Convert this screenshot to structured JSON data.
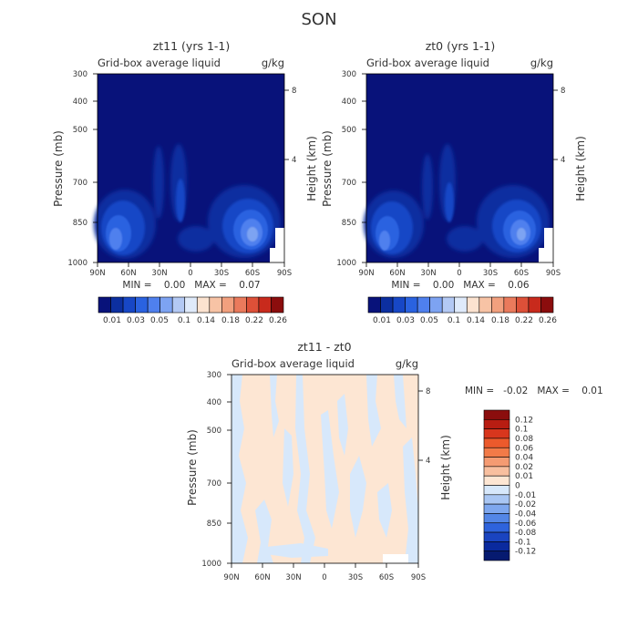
{
  "page": {
    "super_title": "SON"
  },
  "chart_data": [
    {
      "type": "contour",
      "title": "zt11 (yrs 1-1)",
      "subtitle_left": "Grid-box average liquid",
      "subtitle_right": "g/kg",
      "ylabel": "Pressure (mb)",
      "ylabel_right": "Height (km)",
      "x_ticks": [
        "90N",
        "60N",
        "30N",
        "0",
        "30S",
        "60S",
        "90S"
      ],
      "y_ticks": [
        "300",
        "400",
        "500",
        "700",
        "850",
        "1000"
      ],
      "y_ticks_right": [
        "8",
        "4"
      ],
      "stat_text": "MIN =    0.00   MAX =    0.07",
      "stats": {
        "min": 0.0,
        "max": 0.07
      },
      "colorbar": {
        "orientation": "horizontal",
        "labels": [
          "0.01",
          "0.03",
          "0.05",
          "0.1",
          "0.14",
          "0.18",
          "0.22",
          "0.26"
        ],
        "colors": [
          "#08127a",
          "#0c2fa0",
          "#1747c6",
          "#2a62e0",
          "#4f80ee",
          "#7da3f2",
          "#b3c9f4",
          "#dfeafa",
          "#fce3d0",
          "#f7c3a5",
          "#f2a07e",
          "#ea7a5c",
          "#dd5038",
          "#c82a1c",
          "#8b0d0d"
        ]
      }
    },
    {
      "type": "contour",
      "title": "zt0 (yrs 1-1)",
      "subtitle_left": "Grid-box average liquid",
      "subtitle_right": "g/kg",
      "ylabel": "Pressure (mb)",
      "ylabel_right": "Height (km)",
      "x_ticks": [
        "90N",
        "60N",
        "30N",
        "0",
        "30S",
        "60S",
        "90S"
      ],
      "y_ticks": [
        "300",
        "400",
        "500",
        "700",
        "850",
        "1000"
      ],
      "y_ticks_right": [
        "8",
        "4"
      ],
      "stat_text": "MIN =    0.00   MAX =    0.06",
      "stats": {
        "min": 0.0,
        "max": 0.06
      },
      "colorbar": {
        "orientation": "horizontal",
        "labels": [
          "0.01",
          "0.03",
          "0.05",
          "0.1",
          "0.14",
          "0.18",
          "0.22",
          "0.26"
        ],
        "colors": [
          "#08127a",
          "#0c2fa0",
          "#1747c6",
          "#2a62e0",
          "#4f80ee",
          "#7da3f2",
          "#b3c9f4",
          "#dfeafa",
          "#fce3d0",
          "#f7c3a5",
          "#f2a07e",
          "#ea7a5c",
          "#dd5038",
          "#c82a1c",
          "#8b0d0d"
        ]
      }
    },
    {
      "type": "contour",
      "title": "zt11 - zt0",
      "subtitle_left": "Grid-box average liquid",
      "subtitle_right": "g/kg",
      "ylabel": "Pressure (mb)",
      "ylabel_right": "Height (km)",
      "x_ticks": [
        "90N",
        "60N",
        "30N",
        "0",
        "30S",
        "60S",
        "90S"
      ],
      "y_ticks": [
        "300",
        "400",
        "500",
        "700",
        "850",
        "1000"
      ],
      "y_ticks_right": [
        "8",
        "4"
      ],
      "stat_text": "MIN =   -0.02   MAX =    0.01",
      "stats": {
        "min": -0.02,
        "max": 0.01
      },
      "colorbar": {
        "orientation": "vertical",
        "labels": [
          "0.12",
          "0.1",
          "0.08",
          "0.06",
          "0.04",
          "0.02",
          "0.01",
          "0",
          "-0.01",
          "-0.02",
          "-0.04",
          "-0.06",
          "-0.08",
          "-0.1",
          "-0.12"
        ],
        "colors": [
          "#8b0d0d",
          "#b81d12",
          "#d8361d",
          "#ec5a2c",
          "#f27a48",
          "#f59b72",
          "#f8bf9f",
          "#fde6d3",
          "#d7e8fb",
          "#a9c6f3",
          "#7ea7ee",
          "#5386e6",
          "#2e63dc",
          "#1a44c0",
          "#0a2a9e",
          "#061a70"
        ]
      }
    }
  ]
}
